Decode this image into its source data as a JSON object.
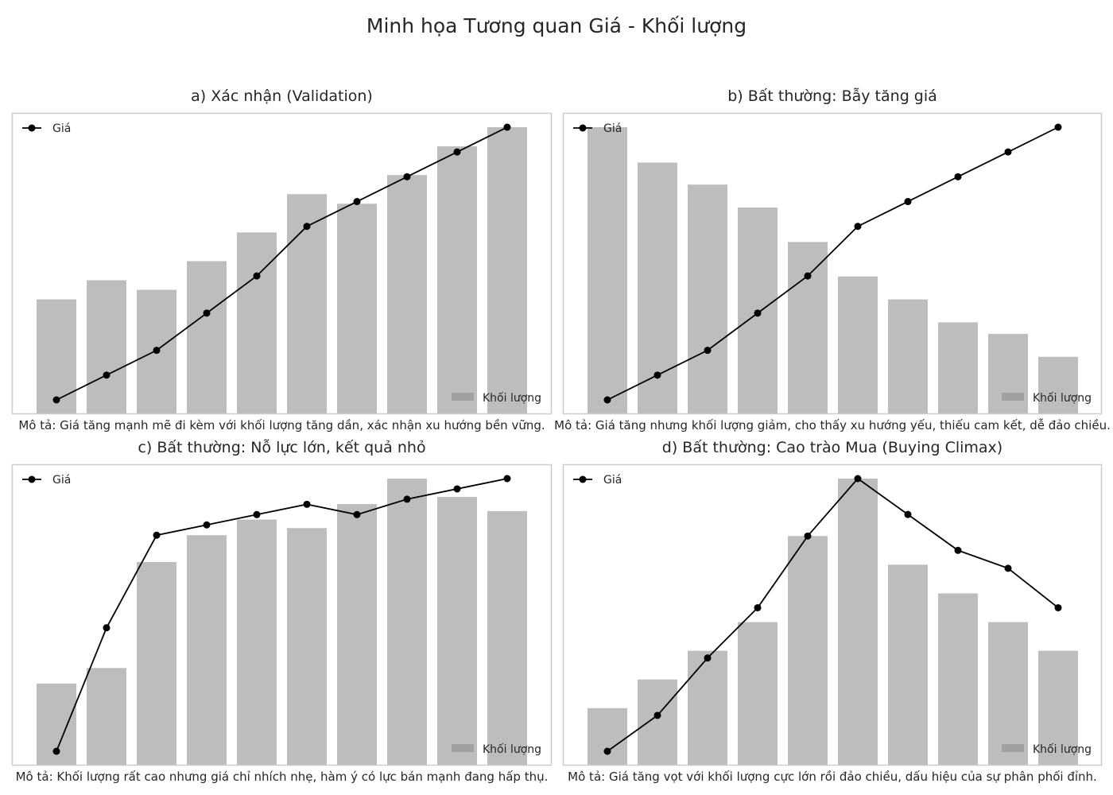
{
  "figure": {
    "title": "Minh họa Tương quan Giá - Khối lượng"
  },
  "colors": {
    "bar": "#bdbdbd",
    "line": "#000000",
    "frame": "#cccccc",
    "text": "#262626",
    "legend_volume_patch": "#a0a0a0"
  },
  "chart_data": [
    {
      "type": "bar",
      "title": "a) Xác nhận (Validation)",
      "description": "Mô tả: Giá tăng mạnh mẽ đi kèm với khối lượng tăng dần, xác nhận xu hướng bền vững.",
      "legend": {
        "line": "Giá",
        "bar": "Khối lượng",
        "line_position": "top-left",
        "bar_position": "bottom-right"
      },
      "x": [
        1,
        2,
        3,
        4,
        5,
        6,
        7,
        8,
        9,
        10
      ],
      "series": [
        {
          "name": "Khối lượng",
          "type": "bar",
          "values": [
            120,
            140,
            130,
            160,
            190,
            230,
            220,
            250,
            280,
            300
          ]
        },
        {
          "name": "Giá",
          "type": "line",
          "values": [
            2,
            6,
            10,
            16,
            22,
            30,
            34,
            38,
            42,
            46
          ]
        }
      ],
      "bar_ylim": [
        0,
        300
      ],
      "line_ylim": [
        2,
        46
      ],
      "grid": false,
      "axes_ticks": false
    },
    {
      "type": "bar",
      "title": "b) Bất thường: Bẫy tăng giá",
      "description": "Mô tả: Giá tăng nhưng khối lượng giảm, cho thấy xu hướng yếu, thiếu cam kết, dễ đảo chiều.",
      "legend": {
        "line": "Giá",
        "bar": "Khối lượng",
        "line_position": "top-left",
        "bar_position": "bottom-right"
      },
      "x": [
        1,
        2,
        3,
        4,
        5,
        6,
        7,
        8,
        9,
        10
      ],
      "series": [
        {
          "name": "Khối lượng",
          "type": "bar",
          "values": [
            300,
            263,
            240,
            216,
            180,
            144,
            120,
            96,
            84,
            60
          ]
        },
        {
          "name": "Giá",
          "type": "line",
          "values": [
            2,
            6,
            10,
            16,
            22,
            30,
            34,
            38,
            42,
            46
          ]
        }
      ],
      "bar_ylim": [
        0,
        300
      ],
      "line_ylim": [
        2,
        46
      ],
      "grid": false,
      "axes_ticks": false
    },
    {
      "type": "bar",
      "title": "c) Bất thường: Nỗ lực lớn, kết quả nhỏ",
      "description": "Mô tả: Khối lượng rất cao nhưng giá chỉ nhích nhẹ, hàm ý có lực bán mạnh đang hấp thụ.",
      "legend": {
        "line": "Giá",
        "bar": "Khối lượng",
        "line_position": "top-left",
        "bar_position": "bottom-right"
      },
      "x": [
        1,
        2,
        3,
        4,
        5,
        6,
        7,
        8,
        9,
        10
      ],
      "series": [
        {
          "name": "Khối lượng",
          "type": "bar",
          "values": [
            58,
            69,
            144,
            163,
            174,
            168,
            185,
            203,
            190,
            180
          ]
        },
        {
          "name": "Giá",
          "type": "line",
          "values": [
            10,
            22,
            31,
            32,
            33,
            34,
            33,
            34.5,
            35.5,
            36.5
          ]
        }
      ],
      "bar_ylim": [
        0,
        203
      ],
      "line_ylim": [
        10,
        36.5
      ],
      "grid": false,
      "axes_ticks": false
    },
    {
      "type": "bar",
      "title": "d) Bất thường: Cao trào Mua (Buying Climax)",
      "description": "Mô tả: Giá tăng vọt với khối lượng cực lớn rồi đảo chiều, dấu hiệu của sự phân phối đỉnh.",
      "legend": {
        "line": "Giá",
        "bar": "Khối lượng",
        "line_position": "top-left",
        "bar_position": "bottom-right"
      },
      "x": [
        1,
        2,
        3,
        4,
        5,
        6,
        7,
        8,
        9,
        10
      ],
      "series": [
        {
          "name": "Khối lượng",
          "type": "bar",
          "values": [
            40,
            60,
            80,
            100,
            160,
            200,
            140,
            120,
            100,
            80
          ]
        },
        {
          "name": "Giá",
          "type": "line",
          "values": [
            10,
            15,
            23,
            30,
            40,
            48,
            43,
            38,
            35.5,
            30
          ]
        }
      ],
      "bar_ylim": [
        0,
        200
      ],
      "line_ylim": [
        10,
        48
      ],
      "grid": false,
      "axes_ticks": false
    }
  ]
}
